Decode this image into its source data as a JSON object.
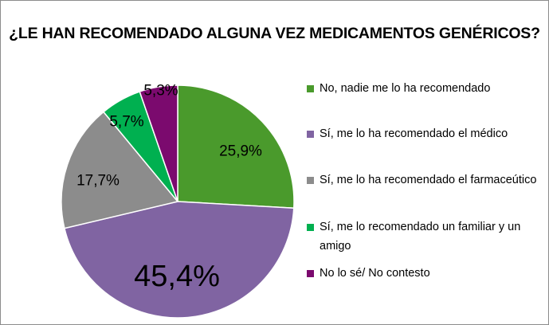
{
  "chart_data": {
    "type": "pie",
    "title": "¿LE HAN RECOMENDADO ALGUNA VEZ MEDICAMENTOS GENÉRICOS?",
    "legend_position": "right",
    "slices": [
      {
        "label": "No, nadie me lo ha recomendado",
        "value": 25.9,
        "display": "25,9%",
        "color": "#4a9a2c"
      },
      {
        "label": "Sí, me lo ha recomendado el médico",
        "value": 45.4,
        "display": "45,4%",
        "color": "#8064a2"
      },
      {
        "label": "Sí, me lo ha recomendado el farmaceútico",
        "value": 17.7,
        "display": "17,7%",
        "color": "#8c8c8c"
      },
      {
        "label": "Sí, me lo recomendado un familiar y un amigo",
        "value": 5.7,
        "display": "5,7%",
        "color": "#00b050"
      },
      {
        "label": "No lo sé/ No contesto",
        "value": 5.3,
        "display": "5,3%",
        "color": "#7b0a6e"
      }
    ]
  }
}
